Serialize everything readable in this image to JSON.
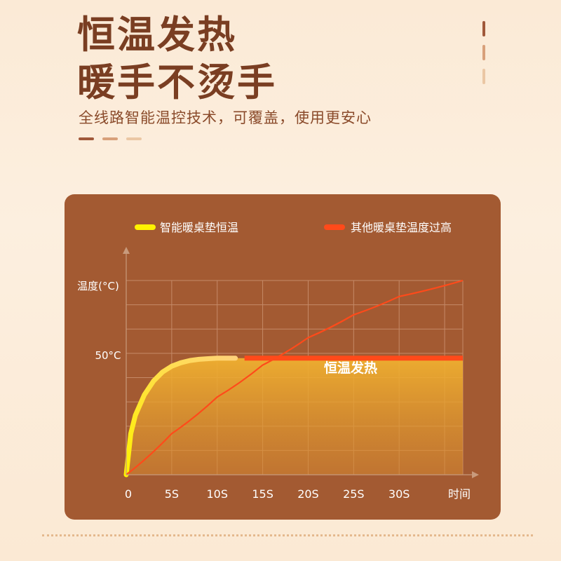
{
  "heading": {
    "line1": "恒温发热",
    "line2": "暖手不烫手",
    "subtitle": "全线路智能温控技术，可覆盖，使用更安心"
  },
  "colors": {
    "heading": "#7a3e22",
    "panel": "#a35a32",
    "smart_series": "#fff200",
    "other_series": "#ff4a1a"
  },
  "chart_data": {
    "type": "line",
    "xlabel": "时间",
    "ylabel": "温度(°C)",
    "x_ticks": [
      "0",
      "5S",
      "10S",
      "15S",
      "20S",
      "25S",
      "30S"
    ],
    "y_ticks": [
      "50°C"
    ],
    "xlim": [
      0,
      37
    ],
    "ylim": [
      0,
      85
    ],
    "grid": true,
    "legend": "top",
    "annotation": "恒温发热",
    "series": [
      {
        "name": "智能暖桌垫恒温",
        "color": "#fff200",
        "x": [
          0,
          0.5,
          1,
          2,
          3,
          4,
          5,
          6,
          7,
          8,
          9,
          10,
          12,
          15,
          20,
          25,
          30,
          37
        ],
        "y": [
          0,
          18,
          26,
          35,
          41,
          45,
          47.5,
          49,
          50,
          50.5,
          50.8,
          51,
          51,
          51,
          51,
          51,
          51,
          51
        ]
      },
      {
        "name": "其他暖桌垫温度过高",
        "color": "#ff4a1a",
        "x": [
          0,
          5,
          10,
          15,
          20,
          25,
          30,
          37
        ],
        "y": [
          0,
          18,
          34,
          48,
          60,
          70,
          78,
          85
        ]
      }
    ]
  }
}
